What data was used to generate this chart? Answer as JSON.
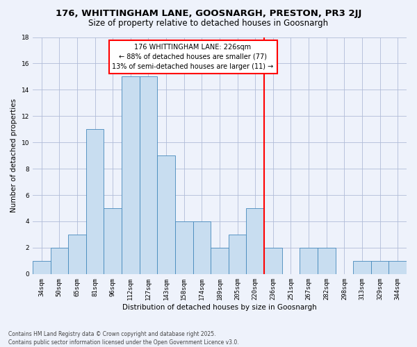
{
  "title": "176, WHITTINGHAM LANE, GOOSNARGH, PRESTON, PR3 2JJ",
  "subtitle": "Size of property relative to detached houses in Goosnargh",
  "xlabel": "Distribution of detached houses by size in Goosnargh",
  "ylabel": "Number of detached properties",
  "categories": [
    "34sqm",
    "50sqm",
    "65sqm",
    "81sqm",
    "96sqm",
    "112sqm",
    "127sqm",
    "143sqm",
    "158sqm",
    "174sqm",
    "189sqm",
    "205sqm",
    "220sqm",
    "236sqm",
    "251sqm",
    "267sqm",
    "282sqm",
    "298sqm",
    "313sqm",
    "329sqm",
    "344sqm"
  ],
  "values": [
    1,
    2,
    3,
    11,
    5,
    15,
    15,
    9,
    4,
    4,
    2,
    3,
    5,
    2,
    0,
    2,
    2,
    0,
    1,
    1,
    1
  ],
  "bar_color": "#c8ddf0",
  "bar_edge_color": "#4488bb",
  "reference_line_index": 12.5,
  "reference_line_color": "red",
  "annotation_text": "176 WHITTINGHAM LANE: 226sqm\n← 88% of detached houses are smaller (77)\n13% of semi-detached houses are larger (11) →",
  "background_color": "#eef2fb",
  "ylim": [
    0,
    18
  ],
  "yticks": [
    0,
    2,
    4,
    6,
    8,
    10,
    12,
    14,
    16,
    18
  ],
  "footer_line1": "Contains HM Land Registry data © Crown copyright and database right 2025.",
  "footer_line2": "Contains public sector information licensed under the Open Government Licence v3.0.",
  "title_fontsize": 9.5,
  "subtitle_fontsize": 8.5,
  "axis_label_fontsize": 7.5,
  "tick_fontsize": 6.5,
  "annotation_fontsize": 7,
  "footer_fontsize": 5.5
}
